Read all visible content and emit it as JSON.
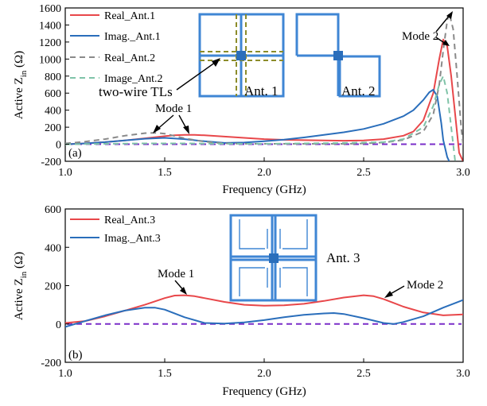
{
  "colors": {
    "real1": "#e8474a",
    "imag1": "#2a6ebb",
    "real2": "#8a8a8a",
    "imag2": "#7fc3a8",
    "zero": "#7a2ec9",
    "antenna": "#3f86d4",
    "antenna_tl": "#8c8c2a",
    "antenna_feed": "#2a6ebb"
  },
  "chart_data": [
    {
      "panel": "(a)",
      "type": "line",
      "xlabel": "Frequency (GHz)",
      "ylabel": "Active Z_in (Ω)",
      "ylabel_main": "Active Z",
      "ylabel_sub": "in",
      "ylabel_unit": " (Ω)",
      "xlim": [
        1.0,
        3.0
      ],
      "ylim": [
        -200,
        1600
      ],
      "xticks": [
        1.0,
        1.5,
        2.0,
        2.5,
        3.0
      ],
      "xtick_labels": [
        "1.0",
        "1.5",
        "2.0",
        "2.5",
        "3.0"
      ],
      "yticks": [
        -200,
        0,
        200,
        400,
        600,
        800,
        1000,
        1200,
        1400,
        1600
      ],
      "ytick_labels": [
        "-200",
        "0",
        "200",
        "400",
        "600",
        "800",
        "1000",
        "1200",
        "1400",
        "1600"
      ],
      "legend_position": "top-left",
      "series": [
        {
          "name": "Real_Ant.1",
          "color_key": "real1",
          "dash": "solid",
          "x": [
            1.0,
            1.1,
            1.2,
            1.3,
            1.4,
            1.5,
            1.55,
            1.6,
            1.65,
            1.7,
            1.8,
            1.9,
            2.0,
            2.1,
            2.2,
            2.3,
            2.4,
            2.5,
            2.6,
            2.7,
            2.75,
            2.8,
            2.85,
            2.88,
            2.9,
            2.92,
            2.94,
            2.96,
            2.98,
            3.0
          ],
          "y": [
            0,
            10,
            25,
            45,
            70,
            95,
            105,
            110,
            110,
            105,
            90,
            75,
            60,
            52,
            48,
            45,
            42,
            45,
            60,
            100,
            150,
            280,
            600,
            1000,
            1230,
            1150,
            800,
            350,
            -100,
            -200
          ]
        },
        {
          "name": "Imag._Ant.1",
          "color_key": "imag1",
          "dash": "solid",
          "x": [
            1.0,
            1.1,
            1.2,
            1.3,
            1.4,
            1.5,
            1.6,
            1.7,
            1.8,
            1.9,
            2.0,
            2.1,
            2.2,
            2.3,
            2.4,
            2.5,
            2.6,
            2.7,
            2.75,
            2.8,
            2.83,
            2.85,
            2.87,
            2.89,
            2.9,
            2.92,
            2.93
          ],
          "y": [
            0,
            10,
            25,
            45,
            65,
            75,
            60,
            35,
            15,
            20,
            35,
            55,
            80,
            110,
            140,
            180,
            240,
            330,
            400,
            520,
            610,
            640,
            560,
            250,
            50,
            -150,
            -200
          ]
        },
        {
          "name": "Real_Ant.2",
          "color_key": "real2",
          "dash": "dashed",
          "x": [
            1.0,
            1.1,
            1.2,
            1.3,
            1.4,
            1.45,
            1.5,
            1.6,
            1.7,
            1.8,
            1.9,
            2.0,
            2.2,
            2.4,
            2.5,
            2.6,
            2.7,
            2.8,
            2.85,
            2.88,
            2.9,
            2.92,
            2.93,
            2.95,
            2.97,
            2.99,
            3.0
          ],
          "y": [
            10,
            30,
            60,
            100,
            130,
            135,
            125,
            70,
            30,
            10,
            5,
            5,
            5,
            5,
            10,
            20,
            50,
            150,
            350,
            700,
            1100,
            1450,
            1540,
            1350,
            800,
            200,
            0
          ]
        },
        {
          "name": "Image_Ant.2",
          "color_key": "imag2",
          "dash": "dashed",
          "x": [
            1.0,
            1.2,
            1.4,
            1.5,
            1.6,
            1.8,
            2.0,
            2.2,
            2.4,
            2.6,
            2.7,
            2.8,
            2.85,
            2.88,
            2.9,
            2.92,
            2.94,
            2.96
          ],
          "y": [
            0,
            5,
            10,
            10,
            10,
            5,
            5,
            10,
            15,
            25,
            60,
            200,
            450,
            700,
            800,
            600,
            200,
            -200
          ]
        }
      ],
      "zero_line": {
        "y": 0,
        "color_key": "zero",
        "dash": "dashed"
      },
      "annotations": [
        {
          "text": "Mode 1",
          "x": 1.6,
          "y": 300
        },
        {
          "text": "Mode 2",
          "x": 2.77,
          "y": 1050
        },
        {
          "text": "two-wire TLs",
          "x": 1.3,
          "y": 500
        },
        {
          "text": "Ant. 1",
          "x": 1.93,
          "y": 530
        },
        {
          "text": "Ant. 2",
          "x": 2.56,
          "y": 530
        }
      ]
    },
    {
      "panel": "(b)",
      "type": "line",
      "xlabel": "Frequency (GHz)",
      "ylabel": "Active Z_in (Ω)",
      "ylabel_main": "Active Z",
      "ylabel_sub": "in",
      "ylabel_unit": " (Ω)",
      "xlim": [
        1.0,
        3.0
      ],
      "ylim": [
        -200,
        600
      ],
      "xticks": [
        1.0,
        1.5,
        2.0,
        2.5,
        3.0
      ],
      "xtick_labels": [
        "1.0",
        "1.5",
        "2.0",
        "2.5",
        "3.0"
      ],
      "yticks": [
        -200,
        0,
        200,
        400,
        600
      ],
      "ytick_labels": [
        "-200",
        "0",
        "200",
        "400",
        "600"
      ],
      "legend_position": "top-left",
      "series": [
        {
          "name": "Real_Ant.3",
          "color_key": "real1",
          "dash": "solid",
          "x": [
            1.0,
            1.1,
            1.2,
            1.3,
            1.4,
            1.5,
            1.55,
            1.6,
            1.65,
            1.7,
            1.8,
            1.9,
            2.0,
            2.1,
            2.2,
            2.3,
            2.4,
            2.5,
            2.55,
            2.6,
            2.7,
            2.8,
            2.9,
            3.0
          ],
          "y": [
            5,
            15,
            40,
            70,
            100,
            135,
            148,
            150,
            145,
            135,
            115,
            100,
            95,
            97,
            105,
            120,
            138,
            150,
            145,
            130,
            90,
            60,
            45,
            50
          ]
        },
        {
          "name": "Imag._Ant.3",
          "color_key": "imag1",
          "dash": "solid",
          "x": [
            1.0,
            1.1,
            1.2,
            1.3,
            1.4,
            1.45,
            1.5,
            1.6,
            1.7,
            1.8,
            1.9,
            2.0,
            2.1,
            2.2,
            2.3,
            2.35,
            2.4,
            2.5,
            2.6,
            2.65,
            2.7,
            2.8,
            2.9,
            3.0
          ],
          "y": [
            -15,
            15,
            45,
            70,
            85,
            85,
            75,
            35,
            5,
            2,
            8,
            20,
            35,
            48,
            55,
            57,
            52,
            30,
            5,
            0,
            10,
            40,
            85,
            125
          ]
        }
      ],
      "zero_line": {
        "y": 0,
        "color_key": "zero",
        "dash": "dashed"
      },
      "annotations": [
        {
          "text": "Mode 1",
          "x": 1.6,
          "y": 230
        },
        {
          "text": "Mode 2",
          "x": 2.59,
          "y": 200
        },
        {
          "text": "Ant. 3",
          "x": 2.55,
          "y": 340
        }
      ]
    }
  ]
}
